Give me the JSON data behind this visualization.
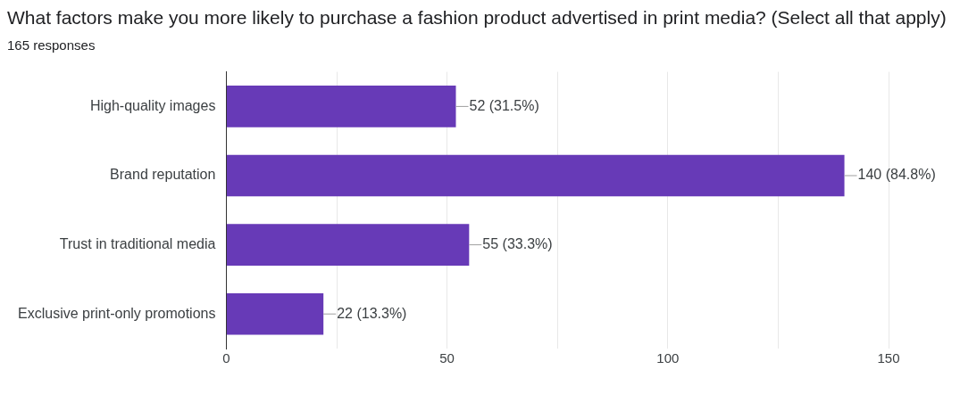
{
  "chart_data": {
    "type": "bar",
    "orientation": "horizontal",
    "title": "What factors make you more likely to purchase a fashion product advertised in print media? (Select all that apply)",
    "subtitle": "165 responses",
    "categories": [
      "High-quality images",
      "Brand reputation",
      "Trust in traditional media",
      "Exclusive print-only promotions"
    ],
    "values": [
      52,
      140,
      55,
      22
    ],
    "color": "#673ab7",
    "value_labels": [
      "52 (31.5%)",
      "140 (84.8%)",
      "55 (33.3%)",
      "22 (13.3%)"
    ],
    "xlim": [
      0,
      150
    ],
    "xticks": [
      0,
      {
        "value": 25,
        "label": null
      },
      50,
      {
        "value": 75,
        "label": null
      },
      100,
      {
        "value": 125,
        "label": null
      },
      150
    ],
    "grid": "x",
    "legend": false
  }
}
